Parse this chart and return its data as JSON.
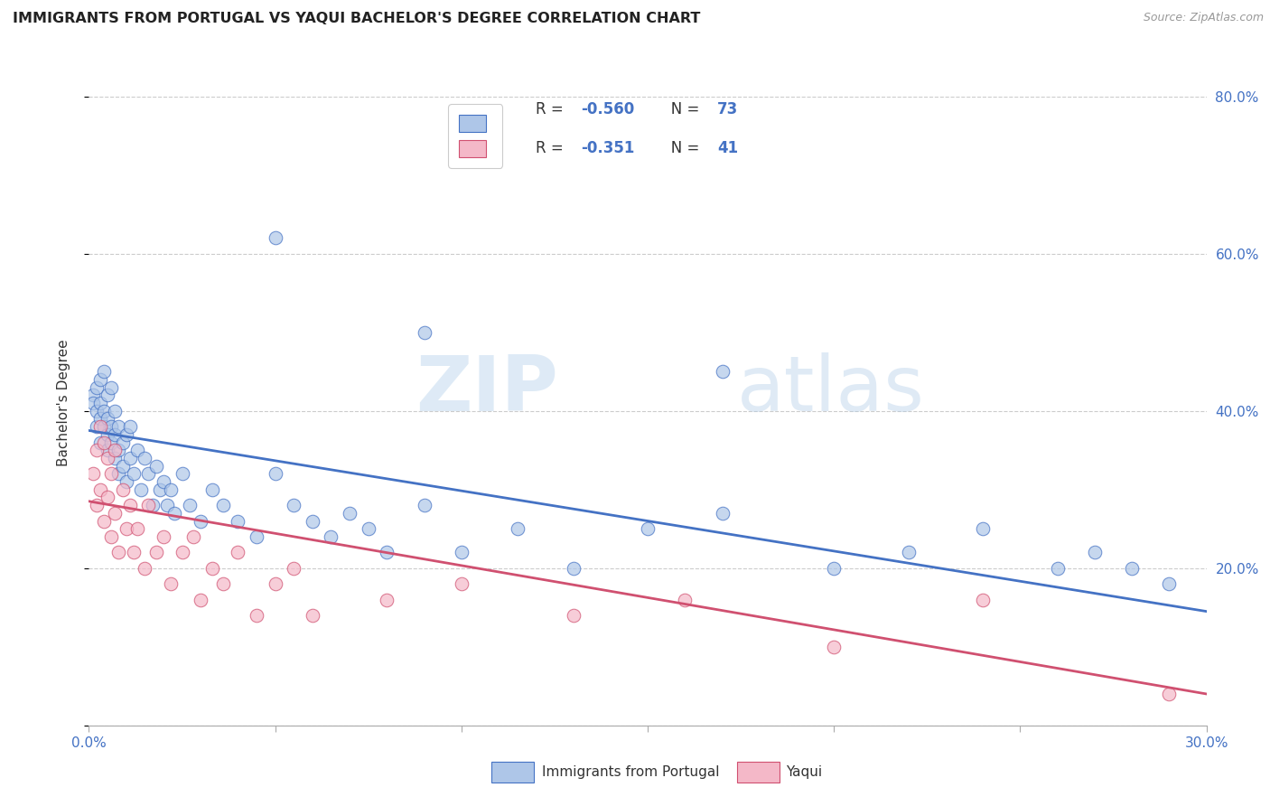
{
  "title": "IMMIGRANTS FROM PORTUGAL VS YAQUI BACHELOR'S DEGREE CORRELATION CHART",
  "source": "Source: ZipAtlas.com",
  "ylabel": "Bachelor's Degree",
  "legend_label1": "Immigrants from Portugal",
  "legend_label2": "Yaqui",
  "r1": -0.56,
  "n1": 73,
  "r2": -0.351,
  "n2": 41,
  "color1": "#aec6e8",
  "color2": "#f4b8c8",
  "line_color1": "#4472c4",
  "line_color2": "#d05070",
  "watermark_zip": "ZIP",
  "watermark_atlas": "atlas",
  "xlim": [
    0.0,
    0.3
  ],
  "ylim": [
    0.0,
    0.82
  ],
  "blue_x": [
    0.001,
    0.001,
    0.002,
    0.002,
    0.002,
    0.003,
    0.003,
    0.003,
    0.003,
    0.004,
    0.004,
    0.004,
    0.005,
    0.005,
    0.005,
    0.005,
    0.006,
    0.006,
    0.006,
    0.007,
    0.007,
    0.007,
    0.008,
    0.008,
    0.008,
    0.009,
    0.009,
    0.01,
    0.01,
    0.011,
    0.011,
    0.012,
    0.013,
    0.014,
    0.015,
    0.016,
    0.017,
    0.018,
    0.019,
    0.02,
    0.021,
    0.022,
    0.023,
    0.025,
    0.027,
    0.03,
    0.033,
    0.036,
    0.04,
    0.045,
    0.05,
    0.055,
    0.06,
    0.065,
    0.07,
    0.075,
    0.08,
    0.09,
    0.1,
    0.115,
    0.13,
    0.15,
    0.17,
    0.2,
    0.22,
    0.24,
    0.26,
    0.27,
    0.28,
    0.29,
    0.05,
    0.09,
    0.17
  ],
  "blue_y": [
    0.42,
    0.41,
    0.4,
    0.43,
    0.38,
    0.39,
    0.44,
    0.36,
    0.41,
    0.38,
    0.4,
    0.45,
    0.37,
    0.42,
    0.35,
    0.39,
    0.36,
    0.43,
    0.38,
    0.34,
    0.4,
    0.37,
    0.35,
    0.38,
    0.32,
    0.36,
    0.33,
    0.37,
    0.31,
    0.38,
    0.34,
    0.32,
    0.35,
    0.3,
    0.34,
    0.32,
    0.28,
    0.33,
    0.3,
    0.31,
    0.28,
    0.3,
    0.27,
    0.32,
    0.28,
    0.26,
    0.3,
    0.28,
    0.26,
    0.24,
    0.32,
    0.28,
    0.26,
    0.24,
    0.27,
    0.25,
    0.22,
    0.28,
    0.22,
    0.25,
    0.2,
    0.25,
    0.27,
    0.2,
    0.22,
    0.25,
    0.2,
    0.22,
    0.2,
    0.18,
    0.62,
    0.5,
    0.45
  ],
  "pink_x": [
    0.001,
    0.002,
    0.002,
    0.003,
    0.003,
    0.004,
    0.004,
    0.005,
    0.005,
    0.006,
    0.006,
    0.007,
    0.007,
    0.008,
    0.009,
    0.01,
    0.011,
    0.012,
    0.013,
    0.015,
    0.016,
    0.018,
    0.02,
    0.022,
    0.025,
    0.028,
    0.03,
    0.033,
    0.036,
    0.04,
    0.045,
    0.05,
    0.055,
    0.06,
    0.08,
    0.1,
    0.13,
    0.16,
    0.2,
    0.24,
    0.29
  ],
  "pink_y": [
    0.32,
    0.35,
    0.28,
    0.38,
    0.3,
    0.36,
    0.26,
    0.34,
    0.29,
    0.32,
    0.24,
    0.35,
    0.27,
    0.22,
    0.3,
    0.25,
    0.28,
    0.22,
    0.25,
    0.2,
    0.28,
    0.22,
    0.24,
    0.18,
    0.22,
    0.24,
    0.16,
    0.2,
    0.18,
    0.22,
    0.14,
    0.18,
    0.2,
    0.14,
    0.16,
    0.18,
    0.14,
    0.16,
    0.1,
    0.16,
    0.04
  ],
  "blue_line_x0": 0.0,
  "blue_line_y0": 0.375,
  "blue_line_x1": 0.3,
  "blue_line_y1": 0.145,
  "pink_line_x0": 0.0,
  "pink_line_y0": 0.285,
  "pink_line_x1": 0.3,
  "pink_line_y1": 0.04
}
